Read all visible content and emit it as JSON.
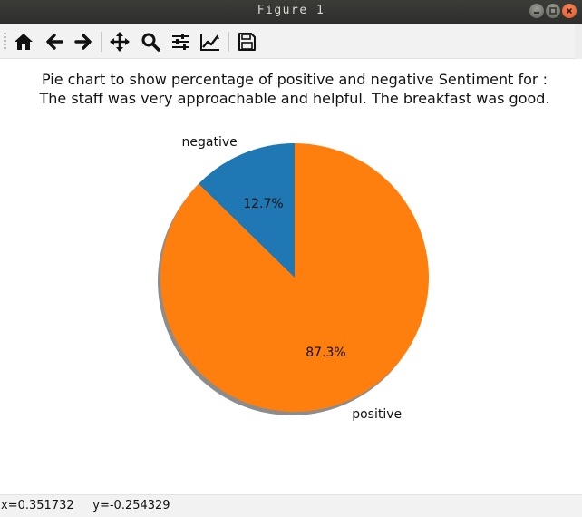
{
  "window": {
    "title": "Figure 1"
  },
  "toolbar": {
    "items": [
      {
        "name": "home-button",
        "icon": "home-icon"
      },
      {
        "name": "back-button",
        "icon": "arrow-left-icon"
      },
      {
        "name": "forward-button",
        "icon": "arrow-right-icon"
      },
      {
        "name": "pan-button",
        "icon": "move-icon"
      },
      {
        "name": "zoom-button",
        "icon": "magnifier-icon"
      },
      {
        "name": "subplots-button",
        "icon": "sliders-icon"
      },
      {
        "name": "edit-axes-button",
        "icon": "line-chart-icon"
      },
      {
        "name": "save-button",
        "icon": "floppy-disk-icon"
      }
    ]
  },
  "status": {
    "coords": "x=0.351732     y=-0.254329"
  },
  "chart_data": {
    "type": "pie",
    "title": "Pie chart to show percentage of positive and negative Sentiment for :",
    "subtitle": "The staff was very approachable and helpful. The breakfast was good.",
    "slices": [
      {
        "label": "negative",
        "value": 12.7,
        "pct_label": "12.7%",
        "color": "#1f77b4"
      },
      {
        "label": "positive",
        "value": 87.3,
        "pct_label": "87.3%",
        "color": "#ff7f0e"
      }
    ],
    "start_angle": 90,
    "direction": "counterclockwise",
    "shadow": true
  }
}
